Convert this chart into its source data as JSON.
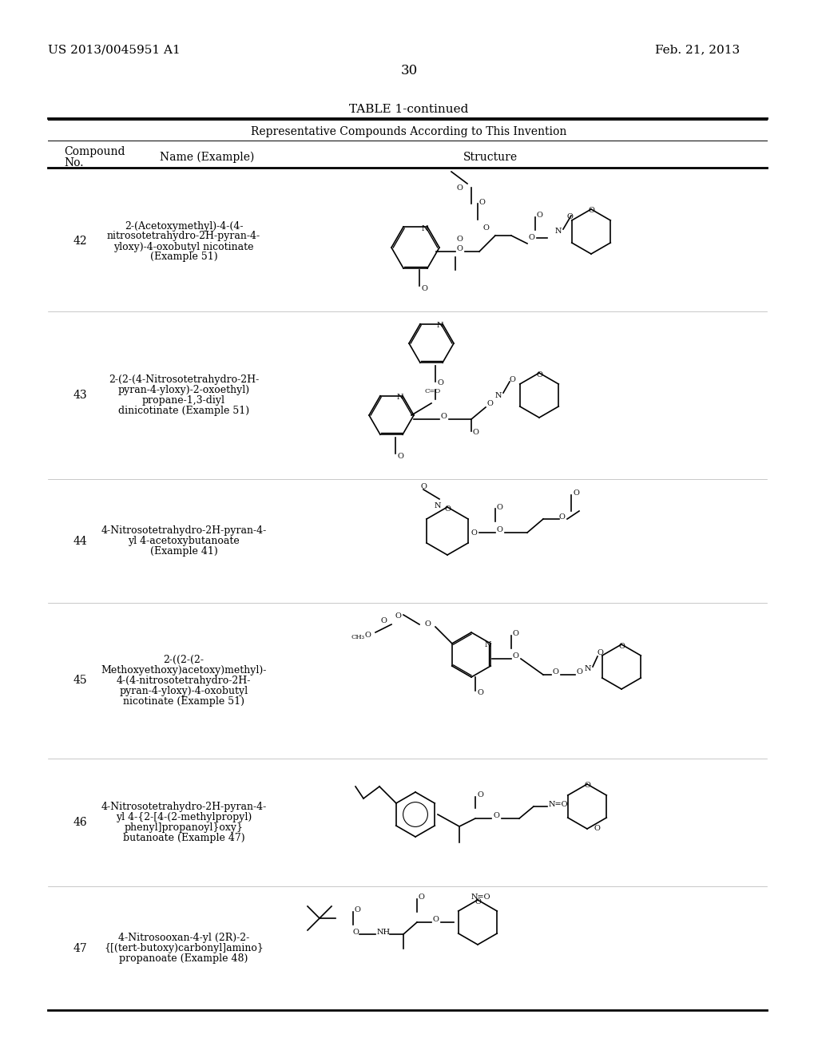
{
  "page_number": "30",
  "patent_number": "US 2013/0045951 A1",
  "patent_date": "Feb. 21, 2013",
  "table_title": "TABLE 1-continued",
  "table_subtitle": "Representative Compounds According to This Invention",
  "col_headers": [
    "Compound\nNo.",
    "Name (Example)",
    "Structure"
  ],
  "background_color": "#ffffff",
  "text_color": "#000000",
  "compounds": [
    {
      "no": "42",
      "name": "2-(Acetoxymethyl)-4-(4-\nnitrosotetrahydro-2H-pyran-4-\nyloxy)-4-oxobutyl nicotinate\n(Example 51)"
    },
    {
      "no": "43",
      "name": "2-(2-(4-Nitrosotetrahydro-2H-\npyran-4-yloxy)-2-oxoethyl)\npropane-1,3-diyl\ndinicotinate (Example 51)"
    },
    {
      "no": "44",
      "name": "4-Nitrosotetrahydro-2H-pyran-4-\nyl 4-acetoxybutanoate\n(Example 41)"
    },
    {
      "no": "45",
      "name": "2-((2-(2-\nMethoxyethoxy)acetoxy)methyl)-\n4-(4-nitrosotetrahydro-2H-\npyran-4-yloxy)-4-oxobutyl\nnicotinate (Example 51)"
    },
    {
      "no": "46",
      "name": "4-Nitrosotetrahydro-2H-pyran-4-\nyl 4-{2-[4-(2-methylpropyl)\nphenyl]propanoyl}oxy}\nbutanoate (Example 47)"
    },
    {
      "no": "47",
      "name": "4-Nitrosooxan-4-yl (2R)-2-\n{[(tert-butoxy)carbonyl]amino}\npropanoate (Example 48)"
    }
  ],
  "structure_images": [
    "cmpd42.png",
    "cmpd43.png",
    "cmpd44.png",
    "cmpd45.png",
    "cmpd46.png",
    "cmpd47.png"
  ]
}
